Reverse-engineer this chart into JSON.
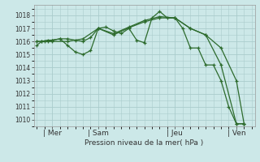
{
  "background_color": "#cce8e8",
  "grid_color": "#aacccc",
  "line_color": "#2d6b2d",
  "ylabel": "Pression niveau de la mer( hPa )",
  "ylim": [
    1009.5,
    1018.8
  ],
  "yticks": [
    1010,
    1011,
    1012,
    1013,
    1014,
    1015,
    1016,
    1017,
    1018
  ],
  "xtick_labels": [
    "| Mer",
    "| Sam",
    "| Jeu",
    "| Ven"
  ],
  "xtick_positions": [
    1,
    4,
    9,
    13
  ],
  "series1_x": [
    0,
    0.3,
    0.7,
    1.0,
    1.5,
    2.0,
    2.5,
    3.0,
    3.5,
    4.0,
    4.5,
    5.0,
    5.5,
    6.0,
    6.5,
    7.0,
    7.5,
    8.0,
    8.5,
    9.0,
    9.5,
    10.0,
    10.5,
    11.0,
    11.5,
    12.0,
    12.5,
    13.0,
    13.5
  ],
  "series1_y": [
    1015.7,
    1016.0,
    1016.0,
    1016.1,
    1016.2,
    1015.7,
    1015.2,
    1015.0,
    1015.3,
    1017.0,
    1017.1,
    1016.8,
    1016.6,
    1017.0,
    1016.1,
    1015.9,
    1017.8,
    1018.3,
    1017.8,
    1017.8,
    1017.0,
    1015.5,
    1015.5,
    1014.2,
    1014.2,
    1013.0,
    1011.0,
    1009.7,
    1009.7
  ],
  "series2_x": [
    0,
    0.3,
    0.7,
    1.0,
    1.5,
    2.0,
    2.5,
    3.0,
    3.5,
    4.0,
    5.0,
    6.0,
    7.0,
    8.0,
    9.0,
    10.0,
    11.0,
    12.0,
    13.0,
    13.5
  ],
  "series2_y": [
    1016.0,
    1016.0,
    1016.1,
    1016.1,
    1016.2,
    1016.2,
    1016.1,
    1016.0,
    1016.3,
    1017.0,
    1016.5,
    1017.05,
    1017.5,
    1017.8,
    1017.8,
    1017.0,
    1016.5,
    1015.5,
    1013.0,
    1009.7
  ],
  "series3_x": [
    0,
    0.5,
    1,
    2,
    3,
    4,
    5,
    6,
    7,
    8,
    9,
    10,
    11,
    12,
    13,
    13.5
  ],
  "series3_y": [
    1016.0,
    1016.0,
    1016.0,
    1016.0,
    1016.2,
    1017.0,
    1016.6,
    1017.1,
    1017.6,
    1017.9,
    1017.8,
    1017.0,
    1016.5,
    1014.2,
    1009.7,
    1009.7
  ]
}
